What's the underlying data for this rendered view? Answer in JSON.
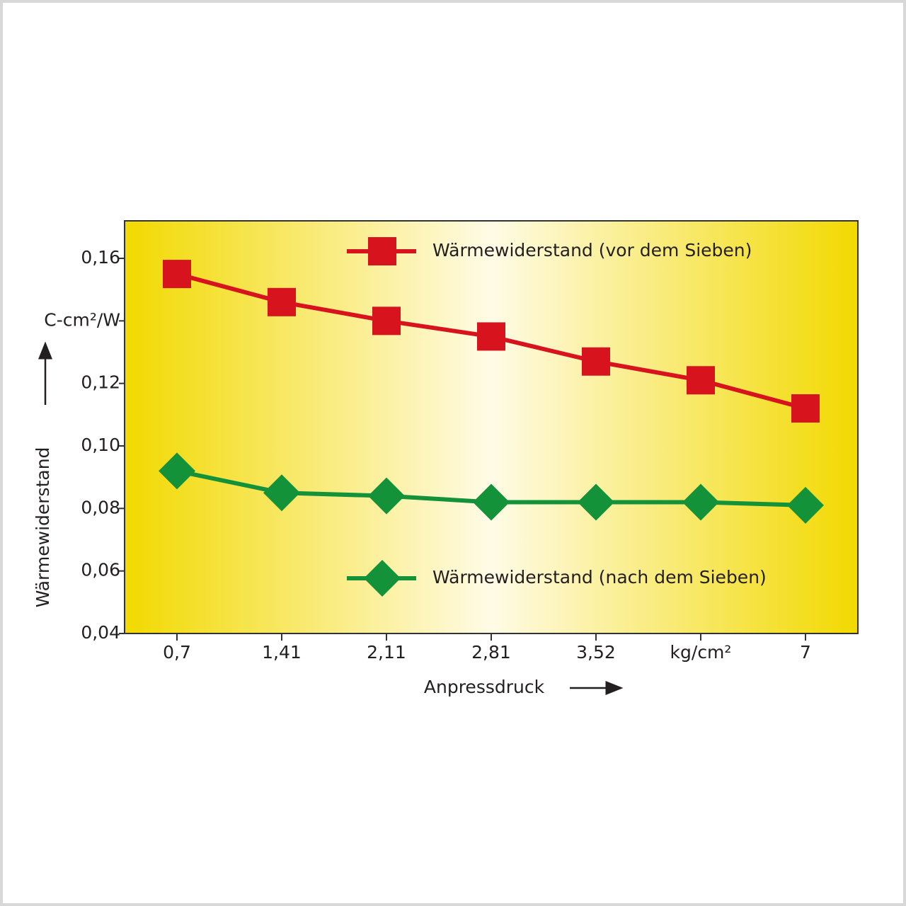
{
  "chart_data": {
    "type": "line",
    "x_label": "Anpressdruck",
    "y_label": "Wärmewiderstand",
    "categories": [
      "0,7",
      "1,41",
      "2,11",
      "2,81",
      "3,52",
      "kg/cm²",
      "7"
    ],
    "series": [
      {
        "name": "Wärmewiderstand (vor dem Sieben)",
        "color": "#d7141e",
        "marker": "square",
        "values": [
          0.155,
          0.146,
          0.14,
          0.135,
          0.127,
          0.121,
          0.112
        ]
      },
      {
        "name": "Wärmewiderstand (nach dem Sieben)",
        "color": "#13923a",
        "marker": "diamond",
        "values": [
          0.092,
          0.085,
          0.084,
          0.082,
          0.082,
          0.082,
          0.081
        ]
      }
    ],
    "ylim": [
      0.04,
      0.172
    ],
    "yticks": [
      {
        "value": 0.04,
        "label": "0,04"
      },
      {
        "value": 0.06,
        "label": "0,06"
      },
      {
        "value": 0.08,
        "label": "0,08"
      },
      {
        "value": 0.1,
        "label": "0,10"
      },
      {
        "value": 0.12,
        "label": "0,12"
      },
      {
        "value": 0.14,
        "label": "C-cm²/W"
      },
      {
        "value": 0.16,
        "label": "0,16"
      }
    ]
  }
}
